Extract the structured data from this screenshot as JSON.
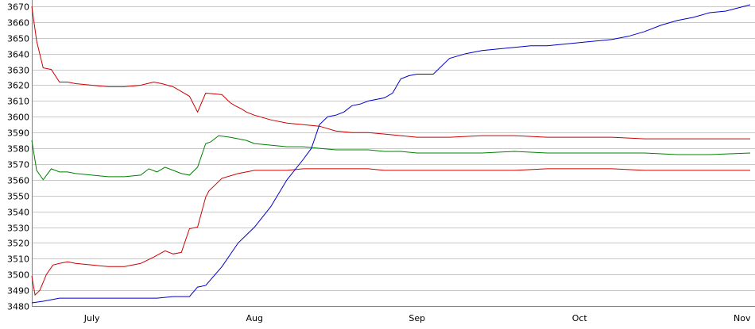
{
  "chart_data": {
    "type": "line",
    "grid": true,
    "ylim": [
      3480,
      3670
    ],
    "y_ticks": [
      3480,
      3490,
      3500,
      3510,
      3520,
      3530,
      3540,
      3550,
      3560,
      3570,
      3580,
      3590,
      3600,
      3610,
      3620,
      3630,
      3640,
      3650,
      3660,
      3670
    ],
    "x_ticks": [
      "July",
      "Aug",
      "Sep",
      "Oct",
      "Nov"
    ],
    "x_tick_positions": [
      1,
      2,
      3,
      4,
      5
    ],
    "x_range": [
      0.63,
      5.05
    ],
    "series": [
      {
        "color": "#cc0000",
        "x": [
          0.63,
          0.66,
          0.7,
          0.75,
          0.8,
          0.85,
          0.9,
          1.0,
          1.1,
          1.2,
          1.3,
          1.38,
          1.43,
          1.5,
          1.55,
          1.6,
          1.65,
          1.7,
          1.8,
          1.85,
          1.88,
          1.92,
          1.95,
          2.0,
          2.1,
          2.2,
          2.3,
          2.4,
          2.5,
          2.6,
          2.7,
          2.8,
          2.9,
          3.0,
          3.2,
          3.4,
          3.6,
          3.8,
          4.0,
          4.2,
          4.4,
          4.6,
          4.8,
          5.05
        ],
        "values": [
          3670,
          3648,
          3631,
          3630,
          3622,
          3622,
          3621,
          3620,
          3619,
          3619,
          3620,
          3622,
          3621,
          3619,
          3616,
          3613,
          3603,
          3615,
          3614,
          3609,
          3607,
          3605,
          3603,
          3601,
          3598,
          3596,
          3595,
          3594,
          3591,
          3590,
          3590,
          3589,
          3588,
          3587,
          3587,
          3588,
          3588,
          3587,
          3587,
          3587,
          3586,
          3586,
          3586,
          3586
        ]
      },
      {
        "color": "#008000",
        "x": [
          0.63,
          0.66,
          0.7,
          0.75,
          0.8,
          0.85,
          0.9,
          1.0,
          1.1,
          1.2,
          1.3,
          1.35,
          1.4,
          1.45,
          1.5,
          1.55,
          1.6,
          1.65,
          1.7,
          1.73,
          1.78,
          1.85,
          1.95,
          2.0,
          2.1,
          2.2,
          2.3,
          2.4,
          2.5,
          2.6,
          2.7,
          2.8,
          2.9,
          3.0,
          3.2,
          3.4,
          3.6,
          3.8,
          4.0,
          4.2,
          4.4,
          4.6,
          4.8,
          5.05
        ],
        "values": [
          3585,
          3566,
          3560,
          3567,
          3565,
          3565,
          3564,
          3563,
          3562,
          3562,
          3563,
          3567,
          3565,
          3568,
          3566,
          3564,
          3563,
          3568,
          3583,
          3584,
          3588,
          3587,
          3585,
          3583,
          3582,
          3581,
          3581,
          3580,
          3579,
          3579,
          3579,
          3578,
          3578,
          3577,
          3577,
          3577,
          3578,
          3577,
          3577,
          3577,
          3577,
          3576,
          3576,
          3577
        ]
      },
      {
        "color": "#cc0000",
        "x": [
          0.63,
          0.65,
          0.68,
          0.72,
          0.76,
          0.8,
          0.85,
          0.9,
          1.0,
          1.1,
          1.2,
          1.3,
          1.38,
          1.45,
          1.5,
          1.55,
          1.6,
          1.65,
          1.7,
          1.72,
          1.75,
          1.8,
          1.9,
          1.95,
          2.0,
          2.1,
          2.2,
          2.3,
          2.4,
          2.5,
          2.6,
          2.7,
          2.8,
          2.9,
          3.0,
          3.2,
          3.4,
          3.6,
          3.8,
          4.0,
          4.2,
          4.4,
          4.6,
          4.8,
          5.05
        ],
        "values": [
          3499,
          3487,
          3490,
          3500,
          3506,
          3507,
          3508,
          3507,
          3506,
          3505,
          3505,
          3507,
          3511,
          3515,
          3513,
          3514,
          3529,
          3530,
          3549,
          3553,
          3556,
          3561,
          3564,
          3565,
          3566,
          3566,
          3566,
          3567,
          3567,
          3567,
          3567,
          3567,
          3566,
          3566,
          3566,
          3566,
          3566,
          3566,
          3567,
          3567,
          3567,
          3566,
          3566,
          3566,
          3566
        ]
      },
      {
        "color": "#0000cc",
        "x": [
          0.63,
          0.7,
          0.8,
          0.9,
          1.0,
          1.2,
          1.4,
          1.5,
          1.6,
          1.65,
          1.7,
          1.8,
          1.9,
          2.0,
          2.1,
          2.2,
          2.3,
          2.35,
          2.4,
          2.45,
          2.5,
          2.55,
          2.6,
          2.65,
          2.7,
          2.75,
          2.8,
          2.85,
          2.9,
          2.95,
          3.0,
          3.1,
          3.2,
          3.3,
          3.4,
          3.5,
          3.6,
          3.7,
          3.8,
          3.9,
          4.0,
          4.1,
          4.2,
          4.3,
          4.4,
          4.5,
          4.6,
          4.7,
          4.8,
          4.9,
          5.05
        ],
        "values": [
          3482,
          3483,
          3485,
          3485,
          3485,
          3485,
          3485,
          3486,
          3486,
          3492,
          3493,
          3505,
          3520,
          3530,
          3543,
          3560,
          3573,
          3580,
          3595,
          3600,
          3601,
          3603,
          3607,
          3608,
          3610,
          3611,
          3612,
          3615,
          3624,
          3626,
          3627,
          3627,
          3637,
          3640,
          3642,
          3643,
          3644,
          3645,
          3645,
          3646,
          3647,
          3648,
          3649,
          3651,
          3654,
          3658,
          3661,
          3663,
          3666,
          3667,
          3671
        ]
      }
    ]
  }
}
